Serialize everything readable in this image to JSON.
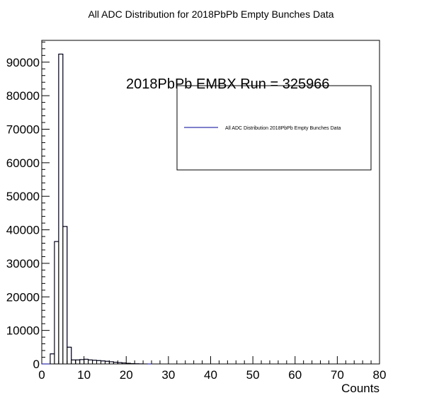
{
  "chart_data": {
    "type": "bar",
    "style": "step-histogram",
    "title": "All ADC Distribution for 2018PbPb Empty Bunches Data",
    "annotation": "2018PbPb EMBX Run = 325966",
    "xlabel": "Counts",
    "ylabel": "",
    "xlim": [
      0,
      80
    ],
    "ylim": [
      0,
      96500
    ],
    "bin_width": 1,
    "x_ticks": [
      0,
      10,
      20,
      30,
      40,
      50,
      60,
      70,
      80
    ],
    "y_ticks": [
      0,
      10000,
      20000,
      30000,
      40000,
      50000,
      60000,
      70000,
      80000,
      90000
    ],
    "legend": {
      "placement": "top-right",
      "entries": [
        "All ADC Distribution 2018PbPb Empty Bunches Data"
      ]
    },
    "series": [
      {
        "name": "All ADC Distribution 2018PbPb Empty Bunches Data",
        "color": "#000099",
        "bin_low_edges": [
          0,
          1,
          2,
          3,
          4,
          5,
          6,
          7,
          8,
          9,
          10,
          11,
          12,
          13,
          14,
          15,
          16,
          17,
          18,
          19,
          20,
          21,
          22,
          23,
          24,
          25
        ],
        "values": [
          0,
          0,
          3000,
          36500,
          92400,
          41000,
          5000,
          1200,
          1200,
          1300,
          1400,
          1200,
          1100,
          1000,
          900,
          800,
          650,
          500,
          400,
          300,
          200,
          100,
          50,
          20,
          10,
          0
        ]
      }
    ],
    "grid": false
  }
}
